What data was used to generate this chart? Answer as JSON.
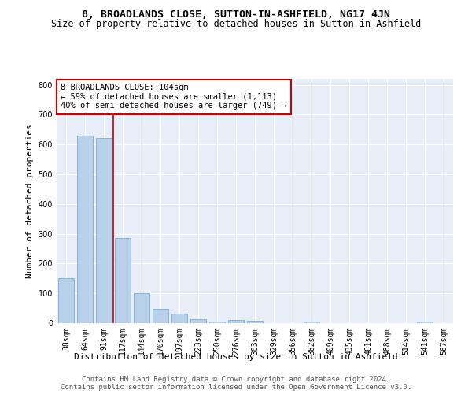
{
  "title": "8, BROADLANDS CLOSE, SUTTON-IN-ASHFIELD, NG17 4JN",
  "subtitle": "Size of property relative to detached houses in Sutton in Ashfield",
  "xlabel": "Distribution of detached houses by size in Sutton in Ashfield",
  "ylabel": "Number of detached properties",
  "categories": [
    "38sqm",
    "64sqm",
    "91sqm",
    "117sqm",
    "144sqm",
    "170sqm",
    "197sqm",
    "223sqm",
    "250sqm",
    "276sqm",
    "303sqm",
    "329sqm",
    "356sqm",
    "382sqm",
    "409sqm",
    "435sqm",
    "461sqm",
    "488sqm",
    "514sqm",
    "541sqm",
    "567sqm"
  ],
  "values": [
    150,
    630,
    622,
    285,
    100,
    48,
    32,
    12,
    5,
    10,
    8,
    0,
    0,
    5,
    0,
    0,
    0,
    0,
    0,
    5,
    0
  ],
  "bar_color": "#b8d0ea",
  "bar_edge_color": "#7aadd4",
  "vline_x": 2.5,
  "vline_color": "#cc0000",
  "annotation_text": "8 BROADLANDS CLOSE: 104sqm\n← 59% of detached houses are smaller (1,113)\n40% of semi-detached houses are larger (749) →",
  "annotation_box_color": "#ffffff",
  "annotation_box_edge_color": "#cc0000",
  "ylim": [
    0,
    820
  ],
  "yticks": [
    0,
    100,
    200,
    300,
    400,
    500,
    600,
    700,
    800
  ],
  "bg_color": "#e8eef8",
  "footer1": "Contains HM Land Registry data © Crown copyright and database right 2024.",
  "footer2": "Contains public sector information licensed under the Open Government Licence v3.0.",
  "title_fontsize": 9.5,
  "subtitle_fontsize": 8.5,
  "label_fontsize": 8,
  "tick_fontsize": 7,
  "annotation_fontsize": 7.5,
  "footer_fontsize": 6.5
}
